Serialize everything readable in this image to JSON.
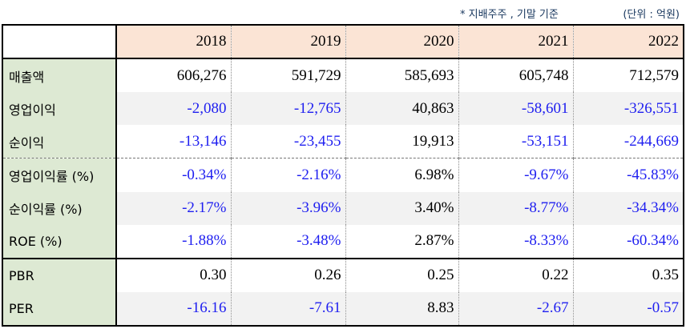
{
  "notes": {
    "basis": "* 지배주주 , 기말 기준",
    "unit": "(단위 : 억원)"
  },
  "table": {
    "years": [
      "2018",
      "2019",
      "2020",
      "2021",
      "2022"
    ],
    "rows": [
      {
        "label": "매출액",
        "values": [
          "606,276",
          "591,729",
          "585,693",
          "605,748",
          "712,579"
        ]
      },
      {
        "label": "영업이익",
        "values": [
          "-2,080",
          "-12,765",
          "40,863",
          "-58,601",
          "-326,551"
        ]
      },
      {
        "label": "순이익",
        "values": [
          "-13,146",
          "-23,455",
          "19,913",
          "-53,151",
          "-244,669"
        ]
      },
      {
        "label": "영업이익률 (%)",
        "values": [
          "-0.34%",
          "-2.16%",
          "6.98%",
          "-9.67%",
          "-45.83%"
        ]
      },
      {
        "label": "순이익률 (%)",
        "values": [
          "-2.17%",
          "-3.96%",
          "3.40%",
          "-8.77%",
          "-34.34%"
        ]
      },
      {
        "label": "ROE (%)",
        "values": [
          "-1.88%",
          "-3.48%",
          "2.87%",
          "-8.33%",
          "-60.34%"
        ]
      },
      {
        "label": "PBR",
        "values": [
          "0.30",
          "0.26",
          "0.25",
          "0.22",
          "0.35"
        ]
      },
      {
        "label": "PER",
        "values": [
          "-16.16",
          "-7.61",
          "8.83",
          "-2.67",
          "-0.57"
        ]
      }
    ]
  },
  "colors": {
    "negative_text": "#1f1ff0",
    "header_fill": "#fbe4d5",
    "label_fill": "#dde9d3",
    "shaded_row_fill": "#f2f2f2"
  }
}
